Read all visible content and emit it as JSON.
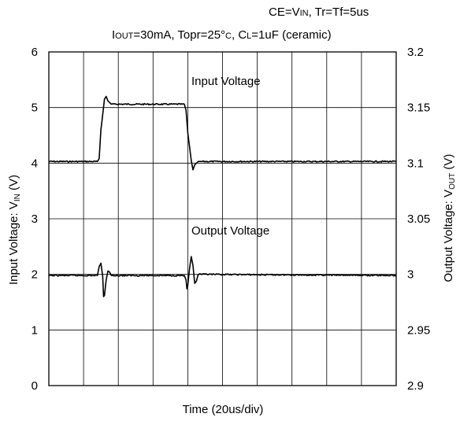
{
  "chart_data": {
    "type": "line",
    "conditions": {
      "line1": {
        "a": "CE=V",
        "a_sub": "IN",
        "b": ", Tr=Tf=5us"
      },
      "line2": {
        "a_sub": "I",
        "a_sub2": "OUT",
        "b": "=30mA, Topr=25°",
        "c_sub": "C",
        "d": ", C",
        "d_sub": "L",
        "e": "=1uF (ceramic)"
      }
    },
    "xlabel": "Time (20us/div)",
    "ylabel_left": {
      "main": "Input Voltage: V",
      "sub": "IN",
      "unit": " (V)"
    },
    "ylabel_right": {
      "main": "Output Voltage: V",
      "sub": "OUT",
      "unit": " (V)"
    },
    "x_divisions": 10,
    "x_range": [
      0,
      200
    ],
    "x_unit": "us",
    "y_left": {
      "range": [
        0,
        6
      ],
      "ticks": [
        "0",
        "1",
        "2",
        "3",
        "4",
        "5",
        "6"
      ]
    },
    "y_right": {
      "range": [
        2.9,
        3.2
      ],
      "ticks": [
        "2.9",
        "2.95",
        "3",
        "3.05",
        "3.1",
        "3.15",
        "3.2"
      ]
    },
    "grid": true,
    "annotations": [
      "Input Voltage",
      "Output Voltage"
    ],
    "series": [
      {
        "axis": "left",
        "x": [
          0,
          28,
          29,
          30,
          32,
          33,
          34,
          36,
          37,
          38,
          78,
          79,
          80,
          82,
          83,
          84,
          86,
          88,
          200
        ],
        "y": [
          4.03,
          4.03,
          4.08,
          4.6,
          5.15,
          5.2,
          5.12,
          5.06,
          5.07,
          5.06,
          5.06,
          4.95,
          4.55,
          4.05,
          3.88,
          3.97,
          4.03,
          4.03,
          4.03
        ]
      },
      {
        "axis": "right",
        "x": [
          0,
          28,
          29,
          30,
          31,
          31.5,
          32,
          33,
          34,
          35,
          36,
          37,
          78,
          79,
          79.5,
          80,
          81,
          82,
          83,
          84,
          85,
          86,
          87,
          200
        ],
        "y": [
          2.999,
          2.999,
          3.007,
          3.01,
          2.998,
          2.98,
          2.981,
          2.995,
          3.003,
          3.002,
          2.999,
          2.999,
          2.999,
          2.995,
          2.987,
          2.99,
          3.005,
          3.016,
          3.008,
          2.992,
          2.994,
          3.0,
          3.0,
          2.999
        ]
      }
    ]
  }
}
